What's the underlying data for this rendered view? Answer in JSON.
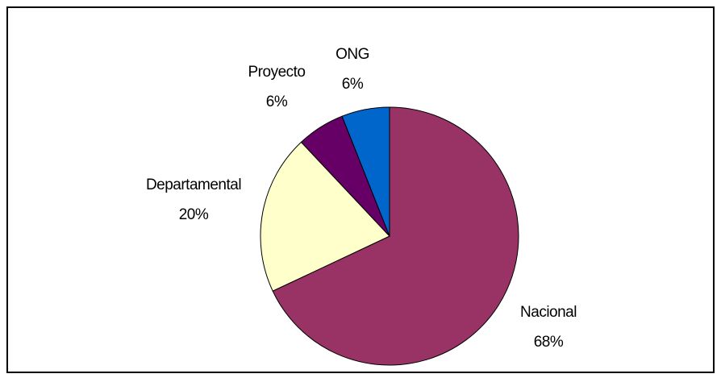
{
  "chart_data": {
    "type": "pie",
    "categories": [
      "Nacional",
      "Departamental",
      "Proyecto",
      "ONG"
    ],
    "values": [
      68,
      20,
      6,
      6
    ],
    "value_labels": [
      "68%",
      "20%",
      "6%",
      "6%"
    ],
    "colors": [
      "#993366",
      "#ffffcc",
      "#660066",
      "#0066cc"
    ]
  }
}
